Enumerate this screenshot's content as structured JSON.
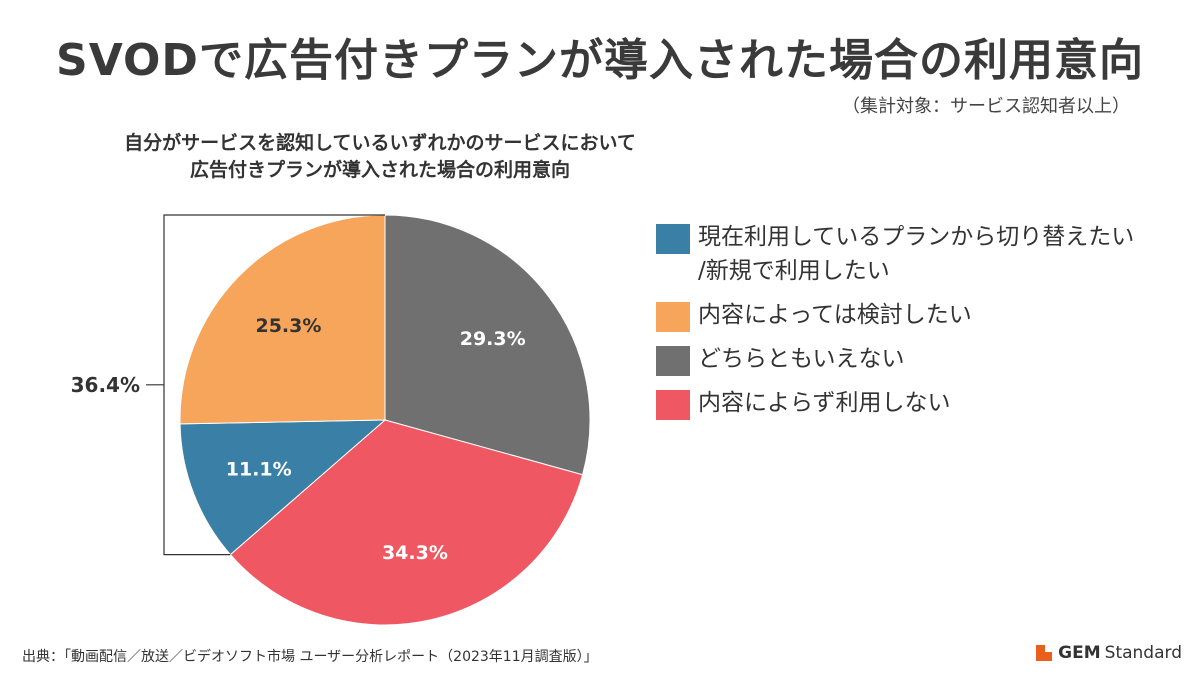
{
  "header": {
    "title": "SVODで広告付きプランが導入された場合の利用意向",
    "subtitle": "（集計対象：サービス認知者以上）"
  },
  "chart_data": {
    "type": "pie",
    "title_lines": [
      "自分がサービスを認知しているいずれかのサービスにおいて",
      "広告付きプランが導入された場合の利用意向"
    ],
    "slices": [
      {
        "label": "現在利用しているプランから切り替えたい/新規で利用したい",
        "value": 11.1,
        "display": "11.1%",
        "color": "#3a7fa6"
      },
      {
        "label": "内容によっては検討したい",
        "value": 25.3,
        "display": "25.3%",
        "color": "#f6a55b"
      },
      {
        "label": "どちらともいえない",
        "value": 29.3,
        "display": "29.3%",
        "color": "#707070"
      },
      {
        "label": "内容によらず利用しない",
        "value": 34.3,
        "display": "34.3%",
        "color": "#ef5862"
      }
    ],
    "bracket": {
      "value": 36.4,
      "display": "36.4%"
    },
    "legend": {
      "position": "right",
      "items": [
        {
          "lines": [
            "現在利用しているプランから切り替えたい",
            "/新規で利用したい"
          ],
          "color": "#3a7fa6"
        },
        {
          "lines": [
            "内容によっては検討したい"
          ],
          "color": "#f6a55b"
        },
        {
          "lines": [
            "どちらともいえない"
          ],
          "color": "#707070"
        },
        {
          "lines": [
            "内容によらず利用しない"
          ],
          "color": "#ef5862"
        }
      ]
    }
  },
  "footer": {
    "source": "出典：「動画配信／放送／ビデオソフト市場 ユーザー分析レポート（2023年11月調査版）」",
    "brand_bold": "GEM",
    "brand_rest": "Standard"
  }
}
